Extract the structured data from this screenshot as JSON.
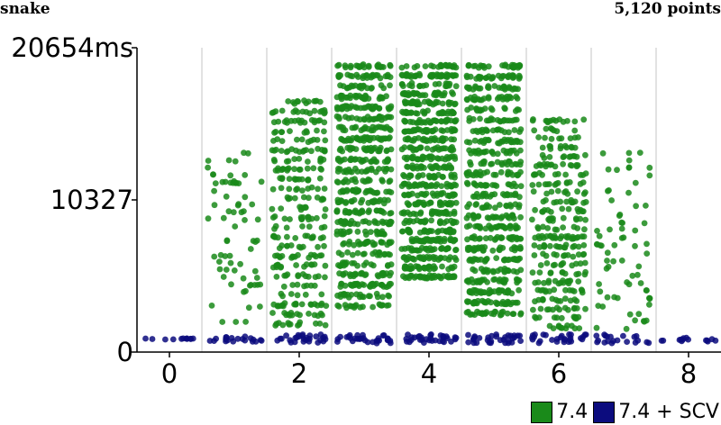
{
  "header": {
    "title": "snake",
    "count": "5,120 points"
  },
  "chart_data": {
    "type": "scatter",
    "title": "snake",
    "xlabel": "",
    "ylabel": "",
    "xlim": [
      -0.5,
      8.5
    ],
    "ylim": [
      0,
      20654
    ],
    "x_ticks": [
      0,
      2,
      4,
      6,
      8
    ],
    "y_ticks": [
      0,
      10327,
      20654
    ],
    "y_tick_labels": [
      "0",
      "10327",
      "20654ms"
    ],
    "grid": "vertical separators between groups",
    "legend_position": "bottom-right",
    "groups": [
      0,
      1,
      2,
      3,
      4,
      5,
      6,
      7,
      8
    ],
    "series": [
      {
        "name": "7.4",
        "color": "#1a8a1a",
        "approx_counts": [
          0,
          70,
          300,
          600,
          700,
          600,
          300,
          70,
          0
        ],
        "ranges": [
          [
            900,
            900
          ],
          [
            2000,
            13900
          ],
          [
            1800,
            17500
          ],
          [
            3000,
            20000
          ],
          [
            5000,
            19900
          ],
          [
            2500,
            20000
          ],
          [
            1600,
            16200
          ],
          [
            1500,
            13900
          ],
          [
            850,
            850
          ]
        ]
      },
      {
        "name": "7.4 + SCV",
        "color": "#0c0c7e",
        "approx_counts": [
          12,
          20,
          28,
          32,
          32,
          32,
          28,
          20,
          14
        ],
        "ranges": [
          [
            850,
            950
          ],
          [
            700,
            1100
          ],
          [
            600,
            1200
          ],
          [
            600,
            1200
          ],
          [
            600,
            1200
          ],
          [
            600,
            1200
          ],
          [
            600,
            1200
          ],
          [
            600,
            1200
          ],
          [
            700,
            1000
          ]
        ]
      }
    ]
  }
}
